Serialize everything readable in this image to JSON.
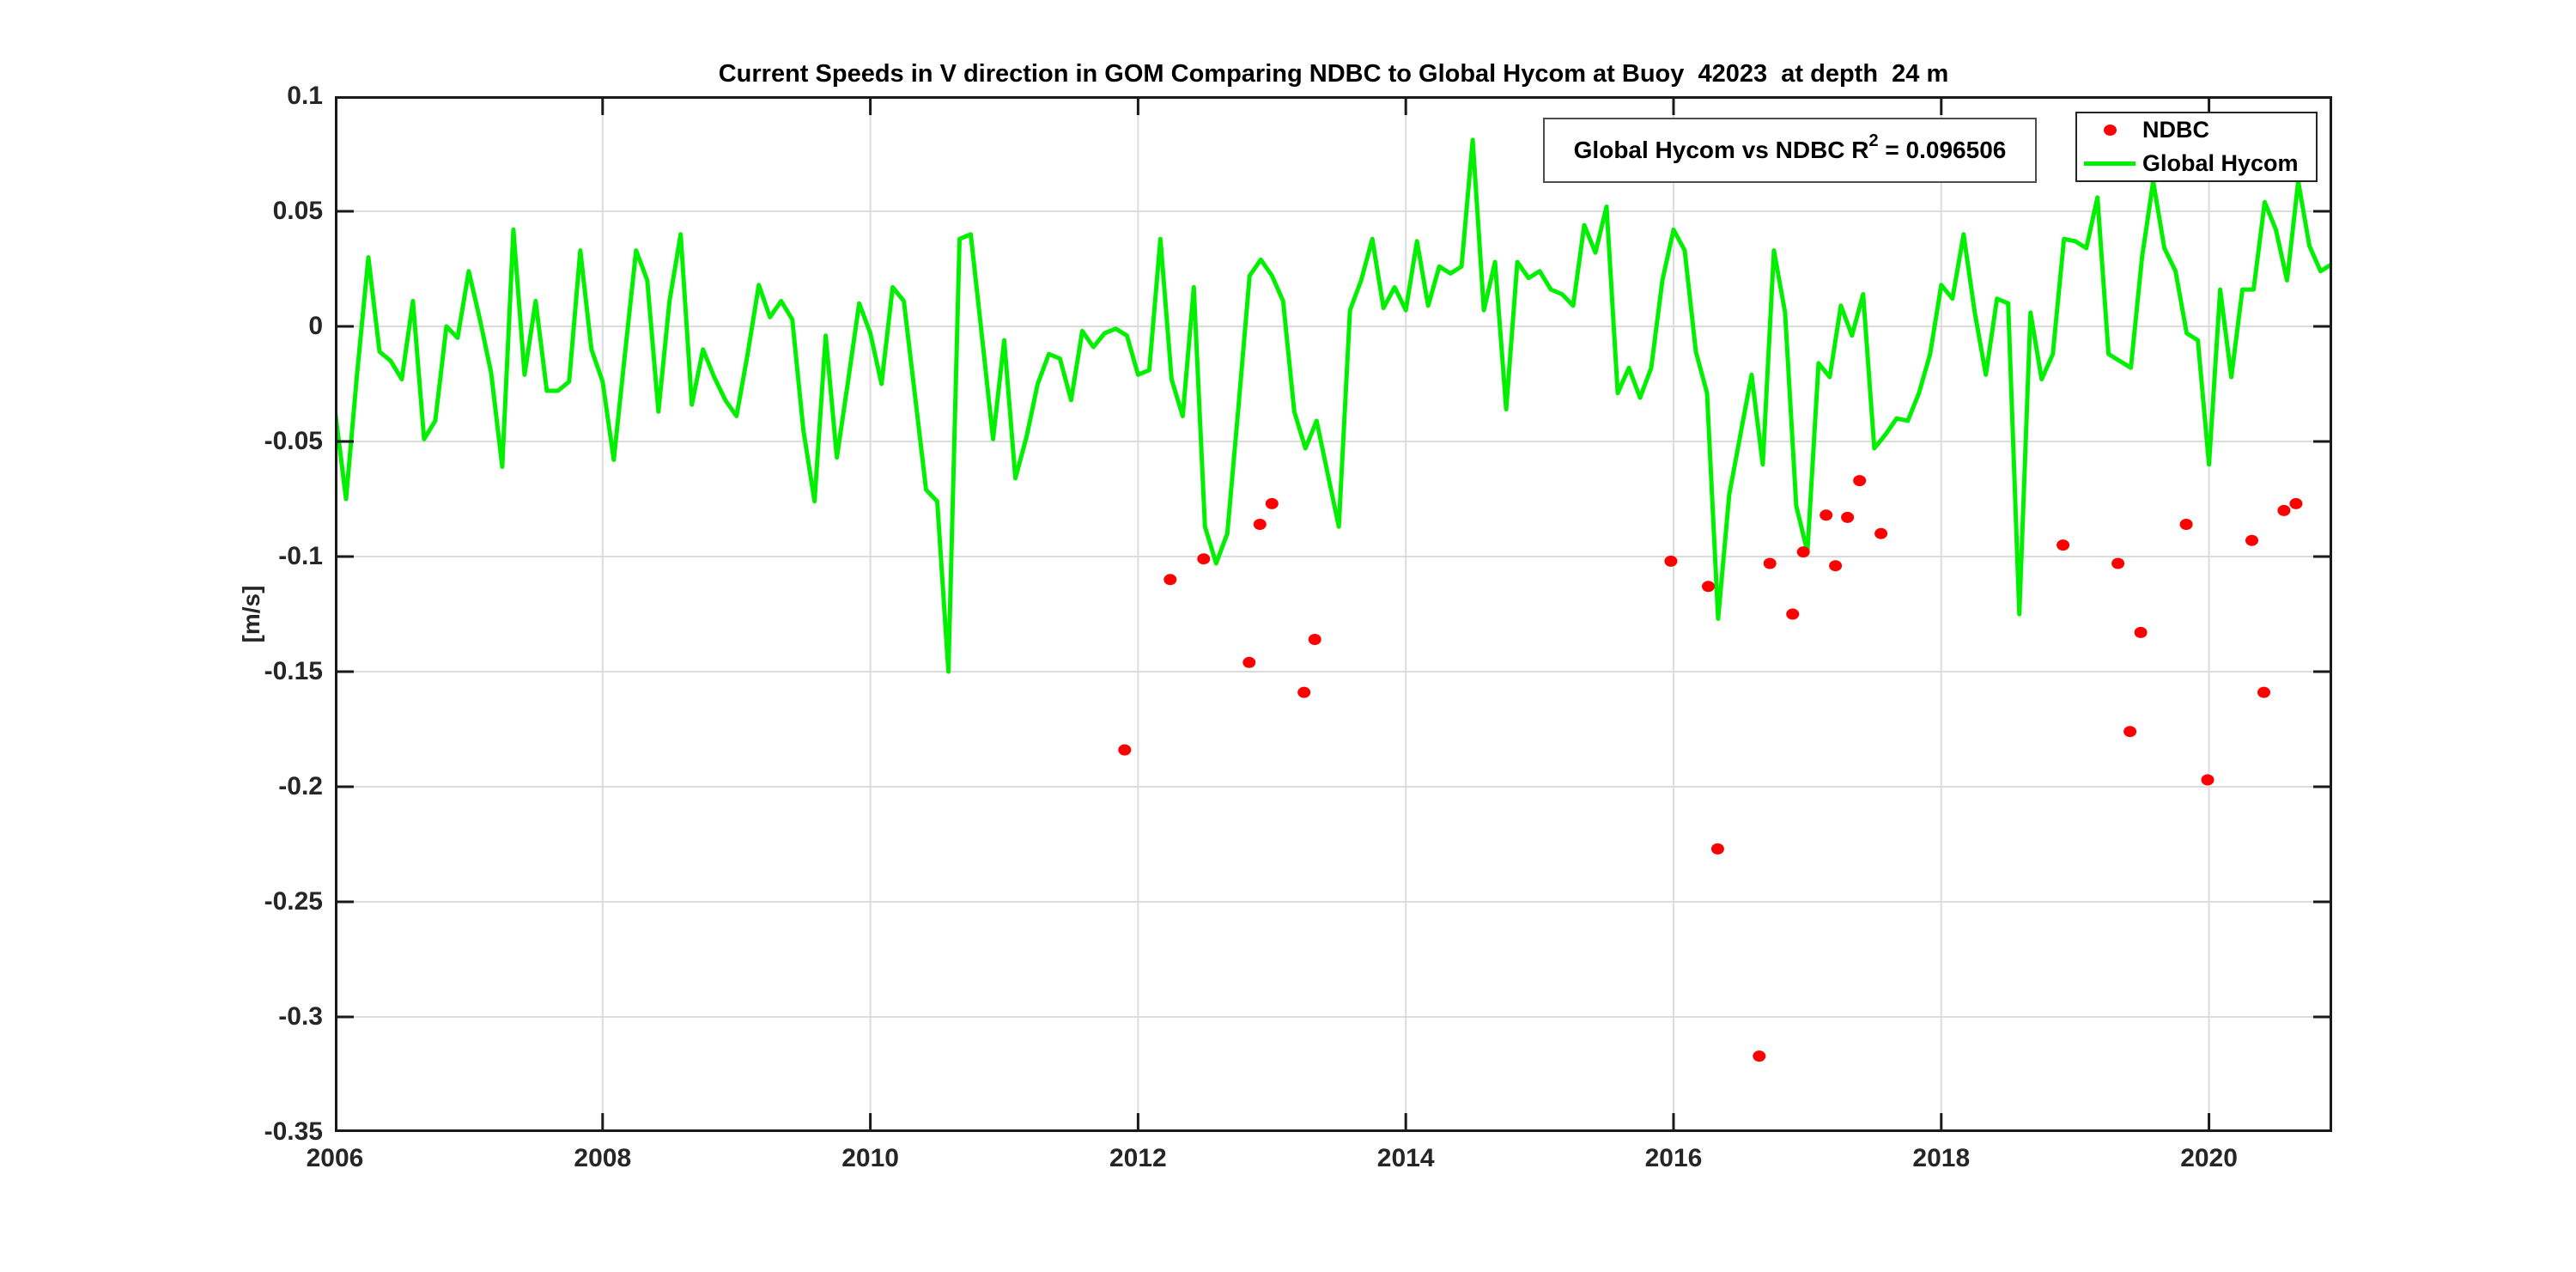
{
  "figure": {
    "title": "Current Speeds in V direction in GOM Comparing NDBC to Global Hycom at Buoy  42023  at depth  24 m",
    "ylabel": "[m/s]",
    "annotation": {
      "prefix": "Global Hycom vs NDBC R",
      "sup": "2",
      "suffix": " = 0.096506"
    },
    "legend": [
      {
        "label": "NDBC",
        "marker": "dot",
        "color": "#ff0000"
      },
      {
        "label": "Global Hycom",
        "marker": "line",
        "color": "#00f000"
      }
    ]
  },
  "chart_data": {
    "type": "line",
    "title": "Current Speeds in V direction in GOM Comparing NDBC to Global Hycom at Buoy  42023  at depth  24 m",
    "xlabel": "",
    "ylabel": "[m/s]",
    "xlim": [
      2006,
      2020.92
    ],
    "ylim": [
      -0.35,
      0.1
    ],
    "xticks": [
      2006,
      2008,
      2010,
      2012,
      2014,
      2016,
      2018,
      2020
    ],
    "xtick_labels": [
      "2006",
      "2008",
      "2010",
      "2012",
      "2014",
      "2016",
      "2018",
      "2020"
    ],
    "yticks": [
      0.1,
      0.05,
      0,
      -0.05,
      -0.1,
      -0.15,
      -0.2,
      -0.25,
      -0.3,
      -0.35
    ],
    "ytick_labels": [
      "0.1",
      "0.05",
      "0",
      "-0.05",
      "-0.1",
      "-0.15",
      "-0.2",
      "-0.25",
      "-0.3",
      "-0.35"
    ],
    "grid": true,
    "legend_position": "top-right",
    "annotation": "Global Hycom vs NDBC R^2 = 0.096506",
    "series": [
      {
        "name": "Global Hycom",
        "type": "line",
        "color": "#00f000",
        "line_width": 5,
        "x_start": 2006.0,
        "x_step_years": 0.0833333,
        "values": [
          -0.036,
          -0.075,
          -0.02,
          0.03,
          -0.011,
          -0.015,
          -0.023,
          0.011,
          -0.049,
          -0.041,
          0.0,
          -0.005,
          0.024,
          0.003,
          -0.02,
          -0.061,
          0.042,
          -0.021,
          0.011,
          -0.028,
          -0.028,
          -0.024,
          0.033,
          -0.01,
          -0.024,
          -0.058,
          -0.012,
          0.033,
          0.02,
          -0.037,
          0.011,
          0.04,
          -0.034,
          -0.01,
          -0.022,
          -0.032,
          -0.039,
          -0.012,
          0.018,
          0.004,
          0.011,
          0.003,
          -0.045,
          -0.076,
          -0.004,
          -0.057,
          -0.024,
          0.01,
          -0.003,
          -0.025,
          0.017,
          0.011,
          -0.03,
          -0.071,
          -0.076,
          -0.15,
          0.038,
          0.04,
          -0.004,
          -0.049,
          -0.006,
          -0.066,
          -0.048,
          -0.025,
          -0.012,
          -0.014,
          -0.032,
          -0.002,
          -0.009,
          -0.003,
          -0.001,
          -0.004,
          -0.021,
          -0.019,
          0.038,
          -0.023,
          -0.039,
          0.017,
          -0.087,
          -0.103,
          -0.09,
          -0.035,
          0.022,
          0.029,
          0.022,
          0.011,
          -0.037,
          -0.053,
          -0.041,
          -0.064,
          -0.087,
          0.007,
          0.02,
          0.038,
          0.008,
          0.017,
          0.007,
          0.037,
          0.009,
          0.026,
          0.023,
          0.026,
          0.081,
          0.007,
          0.028,
          -0.036,
          0.028,
          0.021,
          0.024,
          0.016,
          0.014,
          0.009,
          0.044,
          0.032,
          0.052,
          -0.029,
          -0.018,
          -0.031,
          -0.018,
          0.02,
          0.042,
          0.033,
          -0.011,
          -0.029,
          -0.127,
          -0.073,
          -0.047,
          -0.021,
          -0.06,
          0.033,
          0.006,
          -0.078,
          -0.098,
          -0.016,
          -0.022,
          0.009,
          -0.004,
          0.014,
          -0.053,
          -0.047,
          -0.04,
          -0.041,
          -0.029,
          -0.012,
          0.018,
          0.012,
          0.04,
          0.006,
          -0.021,
          0.012,
          0.01,
          -0.125,
          0.006,
          -0.023,
          -0.012,
          0.038,
          0.037,
          0.034,
          0.056,
          -0.012,
          -0.015,
          -0.018,
          0.03,
          0.063,
          0.034,
          0.024,
          -0.003,
          -0.006,
          -0.06,
          0.016,
          -0.022,
          0.016,
          0.016,
          0.054,
          0.042,
          0.02,
          0.063,
          0.035,
          0.024,
          0.027
        ]
      },
      {
        "name": "NDBC",
        "type": "scatter",
        "color": "#ff0000",
        "marker_rx": 7.5,
        "marker_ry": 6.5,
        "points": [
          [
            2011.9,
            -0.184
          ],
          [
            2012.24,
            -0.11
          ],
          [
            2012.49,
            -0.101
          ],
          [
            2012.83,
            -0.146
          ],
          [
            2012.91,
            -0.086
          ],
          [
            2013.0,
            -0.077
          ],
          [
            2013.24,
            -0.159
          ],
          [
            2013.32,
            -0.136
          ],
          [
            2015.98,
            -0.102
          ],
          [
            2016.26,
            -0.113
          ],
          [
            2016.33,
            -0.227
          ],
          [
            2016.64,
            -0.317
          ],
          [
            2016.72,
            -0.103
          ],
          [
            2016.89,
            -0.125
          ],
          [
            2016.97,
            -0.098
          ],
          [
            2017.14,
            -0.082
          ],
          [
            2017.21,
            -0.104
          ],
          [
            2017.3,
            -0.083
          ],
          [
            2017.39,
            -0.067
          ],
          [
            2017.55,
            -0.09
          ],
          [
            2018.91,
            -0.095
          ],
          [
            2019.32,
            -0.103
          ],
          [
            2019.41,
            -0.176
          ],
          [
            2019.49,
            -0.133
          ],
          [
            2019.83,
            -0.086
          ],
          [
            2019.99,
            -0.197
          ],
          [
            2020.32,
            -0.093
          ],
          [
            2020.41,
            -0.159
          ],
          [
            2020.56,
            -0.08
          ],
          [
            2020.65,
            -0.077
          ]
        ]
      }
    ]
  }
}
